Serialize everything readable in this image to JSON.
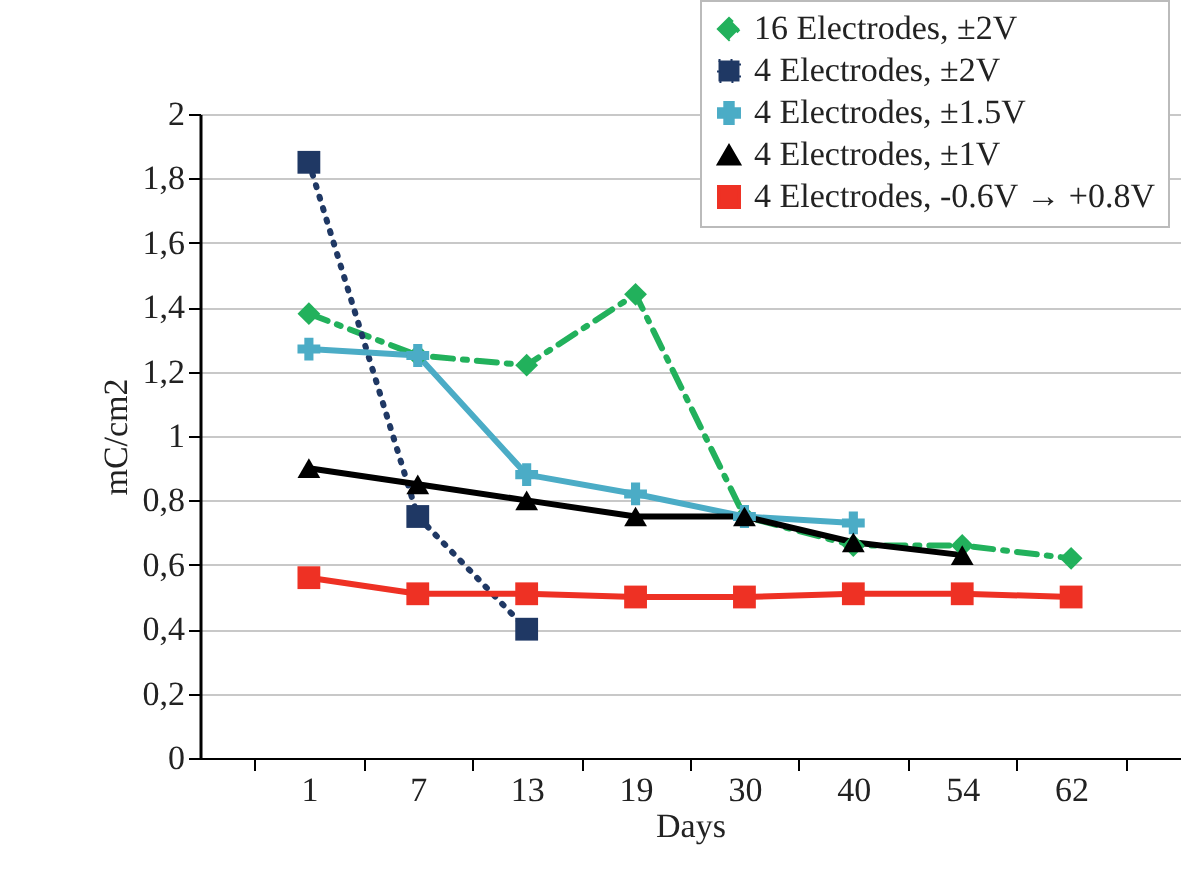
{
  "chart_data": {
    "type": "line",
    "xlabel": "Days",
    "ylabel": "mC/cm2",
    "categories": [
      "1",
      "7",
      "13",
      "19",
      "30",
      "40",
      "54",
      "62"
    ],
    "ylim": [
      0,
      2
    ],
    "yticks": [
      0,
      {
        "value": 0.2,
        "label": "0,2"
      },
      {
        "value": 0.4,
        "label": "0,4"
      },
      {
        "value": 0.6,
        "label": "0,6"
      },
      {
        "value": 0.8,
        "label": "0,8"
      },
      1,
      {
        "value": 1.2,
        "label": "1,2"
      },
      {
        "value": 1.4,
        "label": "1,4"
      },
      {
        "value": 1.6,
        "label": "1,6"
      },
      {
        "value": 1.8,
        "label": "1,8"
      },
      2
    ],
    "grid": "y",
    "legend": "top right",
    "series": [
      {
        "name": "16 Electrodes, ±2V",
        "color": "#22b15c",
        "marker": "diamond",
        "line_style": "dashed",
        "values": [
          1.38,
          1.25,
          1.22,
          1.44,
          0.75,
          0.66,
          0.66,
          0.62
        ]
      },
      {
        "name": "4 Electrodes, ±2V",
        "color": "#1f3864",
        "marker": "square",
        "line_style": "dotted",
        "values": [
          1.85,
          0.75,
          0.4,
          null,
          null,
          null,
          null,
          null
        ]
      },
      {
        "name": "4 Electrodes, ±1.5V",
        "color": "#4bacc6",
        "marker": "cross",
        "line_style": "solid",
        "values": [
          1.27,
          1.25,
          0.88,
          0.82,
          0.75,
          0.73,
          null,
          null
        ]
      },
      {
        "name": "4 Electrodes, ±1V",
        "color": "#000000",
        "marker": "triangle",
        "line_style": "solid",
        "values": [
          0.9,
          0.85,
          0.8,
          0.75,
          0.75,
          0.67,
          0.63,
          null
        ]
      },
      {
        "name": "4 Electrodes, -0.6V → +0.8V",
        "color": "#ee3124",
        "marker": "square",
        "line_style": "solid",
        "values": [
          0.56,
          0.51,
          0.51,
          0.5,
          0.5,
          0.51,
          0.51,
          0.5
        ]
      }
    ]
  }
}
